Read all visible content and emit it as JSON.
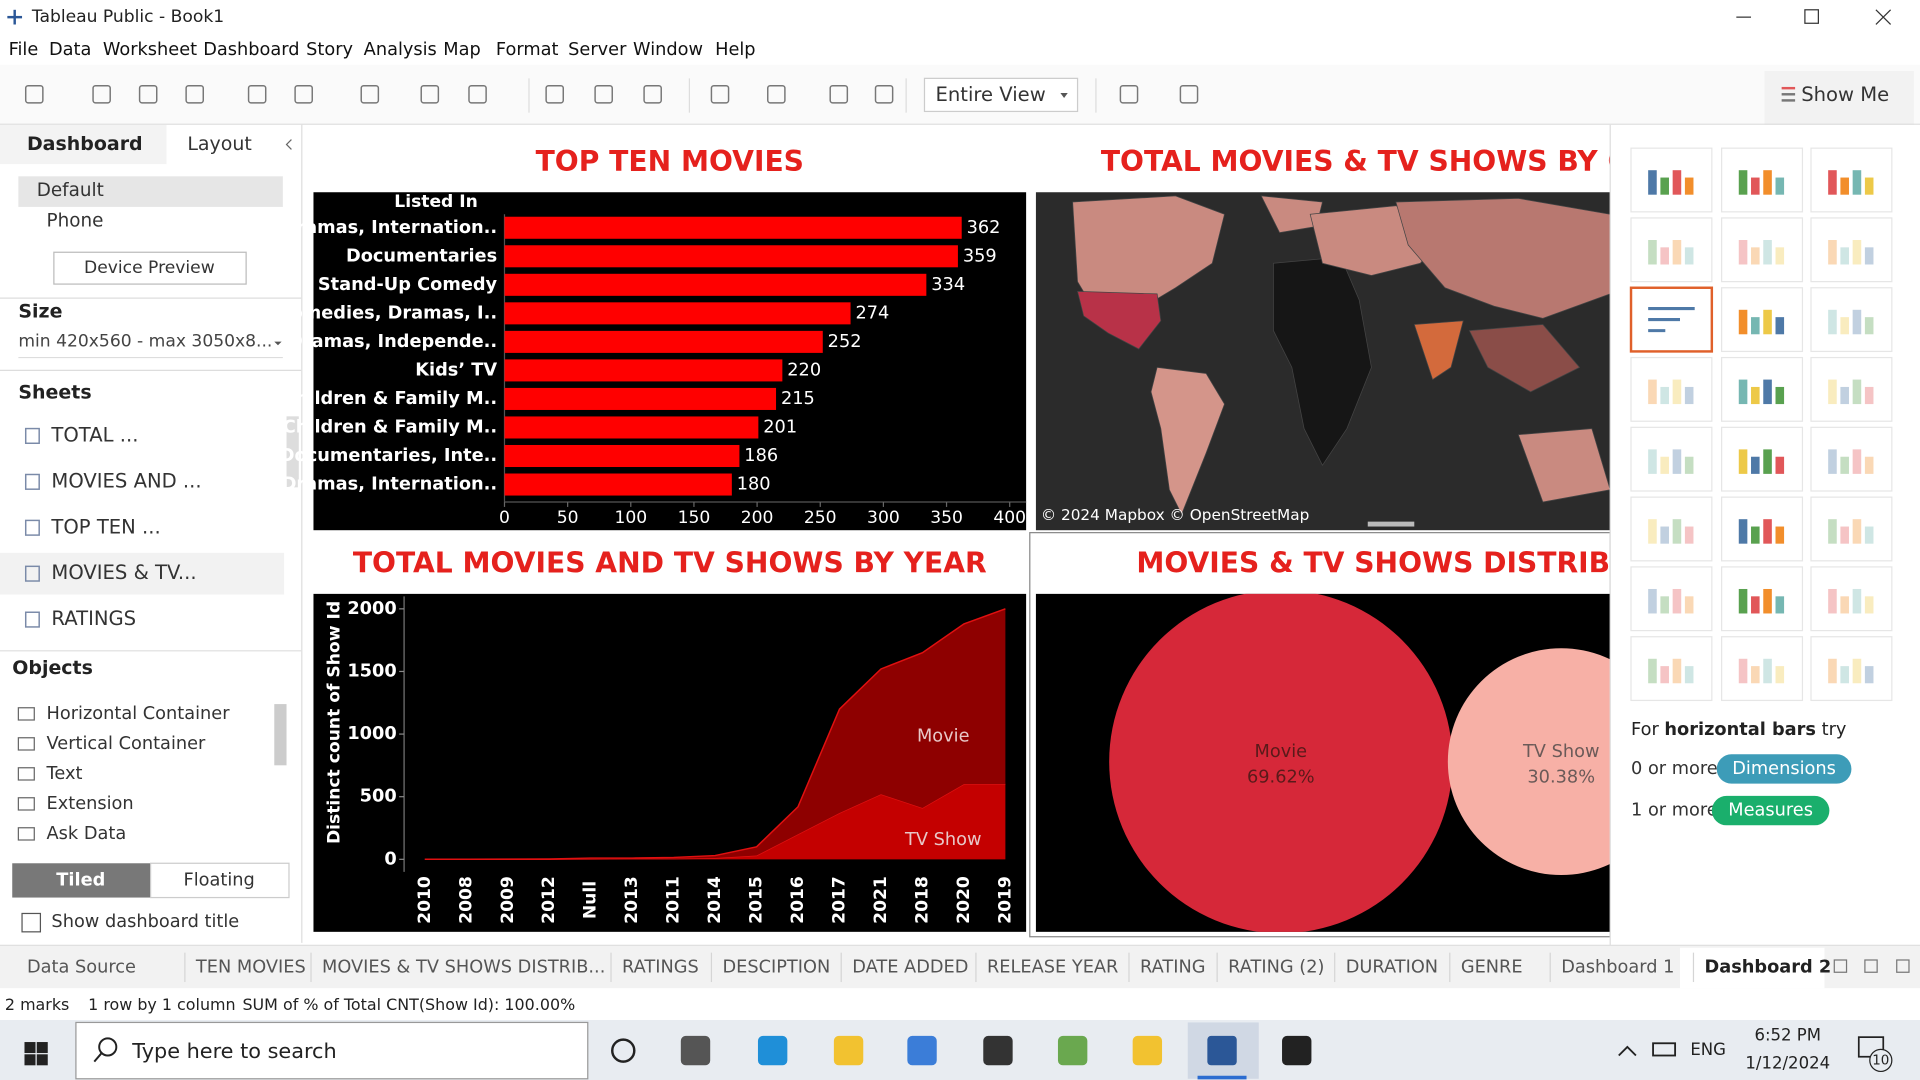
{
  "window": {
    "title": "Tableau Public - Book1",
    "menu": [
      "File",
      "Data",
      "Worksheet",
      "Dashboard",
      "Story",
      "Analysis",
      "Map",
      "Format",
      "Server",
      "Window",
      "Help"
    ]
  },
  "toolbar": {
    "fit": "Entire View",
    "show_me": "Show Me"
  },
  "side_panel": {
    "tabs": [
      "Dashboard",
      "Layout"
    ],
    "devices": [
      "Default",
      "Phone"
    ],
    "device_preview": "Device Preview",
    "size": {
      "label": "Size",
      "value": "min 420x560 - max 3050x8..."
    },
    "sheets": {
      "label": "Sheets",
      "items": [
        "TOTAL ...",
        "MOVIES AND ...",
        "TOP TEN ...",
        "MOVIES & TV...",
        "RATINGS"
      ]
    },
    "objects": {
      "label": "Objects",
      "items": [
        "Horizontal Container",
        "Vertical Container",
        "Text",
        "Extension",
        "Ask Data"
      ]
    },
    "layout_modes": [
      "Tiled",
      "Floating"
    ],
    "show_title": "Show dashboard title"
  },
  "chart_data": [
    {
      "type": "bar",
      "title": "TOP TEN MOVIES",
      "header": "Listed In",
      "categories": [
        "Dramas, Internation..",
        "Documentaries",
        "Stand-Up Comedy",
        "Comedies, Dramas, I..",
        "Dramas, Independe..",
        "Kids’ TV",
        "Children & Family M..",
        "Children & Family M..",
        "Documentaries, Inte..",
        "Dramas, Internation.."
      ],
      "values": [
        362,
        359,
        334,
        274,
        252,
        220,
        215,
        201,
        186,
        180
      ],
      "color": "#ff0000",
      "xlim": [
        0,
        413
      ],
      "xticks": [
        0,
        50,
        100,
        150,
        200,
        250,
        300,
        350,
        400
      ]
    },
    {
      "type": "map",
      "title": "TOTAL MOVIES & TV SHOWS BY COU",
      "attribution": "© 2024 Mapbox © OpenStreetMap"
    },
    {
      "type": "area",
      "stacked": true,
      "title": "TOTAL MOVIES AND TV SHOWS BY YEAR",
      "y_label": "Distinct count of Show Id",
      "categories": [
        "2010",
        "2008",
        "2009",
        "2012",
        "Null",
        "2013",
        "2011",
        "2014",
        "2015",
        "2016",
        "2017",
        "2021",
        "2018",
        "2020",
        "2019"
      ],
      "series": [
        {
          "name": "TV Show",
          "color": "#c40000",
          "values": [
            0,
            0,
            0,
            0,
            3,
            5,
            5,
            10,
            30,
            200,
            370,
            520,
            410,
            600,
            600
          ]
        },
        {
          "name": "Movie",
          "color": "#8e0000",
          "values": [
            1,
            1,
            2,
            3,
            7,
            5,
            10,
            20,
            70,
            220,
            830,
            1000,
            1240,
            1280,
            1400
          ]
        }
      ],
      "ylim": [
        -100,
        2100
      ],
      "yticks": [
        0,
        500,
        1000,
        1500,
        2000
      ]
    },
    {
      "type": "bubble",
      "title": "MOVIES & TV SHOWS DISTRIBUTI",
      "categories": [
        "Movie",
        "TV Show"
      ],
      "values": [
        69.62,
        30.38
      ],
      "value_labels": [
        "69.62%",
        "30.38%"
      ],
      "colors": [
        "#d62839",
        "#f7b0a6"
      ]
    }
  ],
  "show_me": {
    "hint": [
      "For ",
      "horizontal bars",
      " try"
    ],
    "requirements": [
      {
        "count": "0 or more",
        "kind": "Dimensions"
      },
      {
        "count": "1 or more",
        "kind": "Measures"
      }
    ]
  },
  "sheet_tabs": [
    "Data Source",
    "TEN MOVIES",
    "MOVIES & TV SHOWS DISTRIB...",
    "RATINGS",
    "DESCIPTION",
    "DATE ADDED",
    "RELEASE YEAR",
    "RATING",
    "RATING (2)",
    "DURATION",
    "GENRE",
    "Dashboard 1",
    "Dashboard 2"
  ],
  "status_bar": [
    "2 marks",
    "1 row by 1 column",
    "SUM of % of Total CNT(Show Id): 100.00%"
  ],
  "taskbar": {
    "search": "Type here to search",
    "language": "ENG",
    "time": "6:52 PM",
    "date": "1/12/2024",
    "notifications": "10"
  }
}
